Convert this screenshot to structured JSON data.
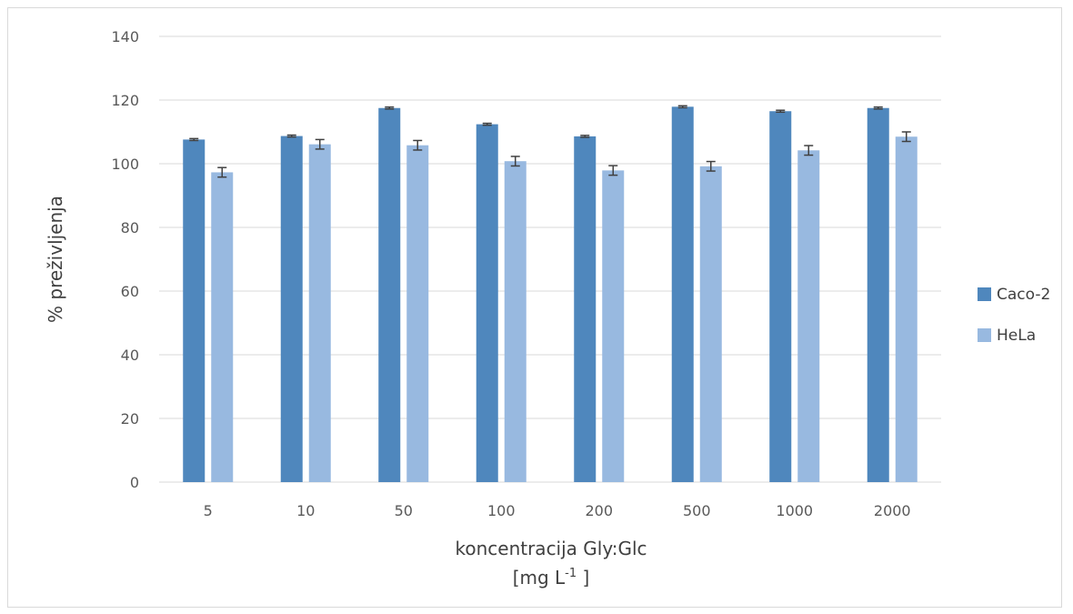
{
  "chart_data": {
    "type": "bar",
    "categories": [
      "5",
      "10",
      "50",
      "100",
      "200",
      "500",
      "1000",
      "2000"
    ],
    "series": [
      {
        "name": "Caco-2",
        "color": "#4f87bd",
        "values": [
          107.6,
          108.7,
          117.5,
          112.4,
          108.6,
          117.9,
          116.5,
          117.5
        ],
        "errors": [
          0.3,
          0.3,
          0.3,
          0.3,
          0.3,
          0.3,
          0.3,
          0.3
        ]
      },
      {
        "name": "HeLa",
        "color": "#98b9e0",
        "values": [
          97.3,
          106.1,
          105.8,
          100.8,
          97.9,
          99.2,
          104.2,
          108.5
        ],
        "errors": [
          1.5,
          1.5,
          1.5,
          1.5,
          1.5,
          1.5,
          1.5,
          1.5
        ]
      }
    ],
    "ylim": [
      0,
      140
    ],
    "yticks": [
      "0",
      "20",
      "40",
      "60",
      "80",
      "100",
      "120",
      "140"
    ],
    "ylabel": "% preživljenja",
    "xlabel_line1": "koncentracija Gly:Glc",
    "xlabel_line2_main": "[mg L",
    "xlabel_line2_sup": "-1",
    "xlabel_line2_end": " ]",
    "grid": true,
    "legend_position": "right"
  }
}
